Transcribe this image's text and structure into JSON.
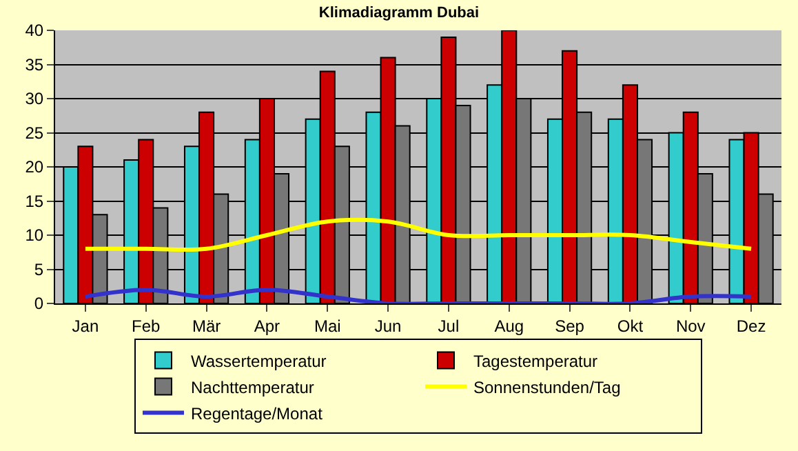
{
  "chart_data": {
    "type": "bar",
    "title": "Klimadiagramm Dubai",
    "categories": [
      "Jan",
      "Feb",
      "Mär",
      "Apr",
      "Mai",
      "Jun",
      "Jul",
      "Aug",
      "Sep",
      "Okt",
      "Nov",
      "Dez"
    ],
    "series": [
      {
        "name": "Wassertemperatur",
        "color": "#33cccc",
        "values": [
          20,
          21,
          23,
          24,
          27,
          28,
          30,
          32,
          27,
          27,
          25,
          24
        ]
      },
      {
        "name": "Tagestemperatur",
        "color": "#cc0000",
        "values": [
          23,
          24,
          28,
          30,
          34,
          36,
          39,
          40,
          37,
          32,
          28,
          25
        ]
      },
      {
        "name": "Nachttemperatur",
        "color": "#777777",
        "values": [
          13,
          14,
          16,
          19,
          23,
          26,
          29,
          30,
          28,
          24,
          19,
          16
        ]
      },
      {
        "name": "Sonnenstunden/Tag",
        "type": "line",
        "color": "#ffff00",
        "values": [
          8,
          8,
          8,
          10,
          12,
          12,
          10,
          10,
          10,
          10,
          9,
          8
        ]
      },
      {
        "name": "Regentage/Monat",
        "type": "line",
        "color": "#3333cc",
        "values": [
          1,
          2,
          1,
          2,
          1,
          0,
          0,
          0,
          0,
          0,
          1,
          1
        ]
      }
    ],
    "ylim": [
      0,
      40
    ],
    "yticks": [
      0,
      5,
      10,
      15,
      20,
      25,
      30,
      35,
      40
    ],
    "grid": "y",
    "legend": "bottom",
    "marker": "none"
  }
}
